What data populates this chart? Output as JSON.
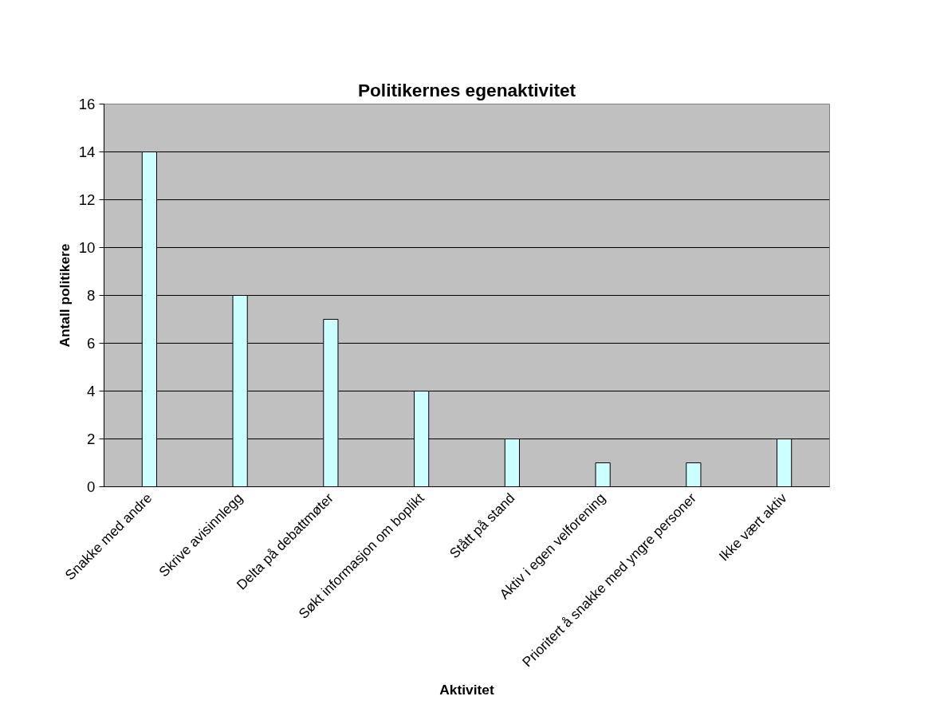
{
  "chart_data": {
    "type": "bar",
    "title": "Politikernes egenaktivitet",
    "xlabel": "Aktivitet",
    "ylabel": "Antall politikere",
    "categories": [
      "Snakke med andre",
      "Skrive avisinnlegg",
      "Delta på debattmøter",
      "Søkt informasjon om boplikt",
      "Stått på stand",
      "Aktiv i egen velforening",
      "Prioritert å snakke med yngre personer",
      "Ikke vært aktiv"
    ],
    "values": [
      14,
      8,
      7,
      4,
      2,
      1,
      1,
      2
    ],
    "color": "#ccffff",
    "ylim": [
      0,
      16
    ],
    "yticks": [
      0,
      2,
      4,
      6,
      8,
      10,
      12,
      14,
      16
    ],
    "grid": "y"
  }
}
